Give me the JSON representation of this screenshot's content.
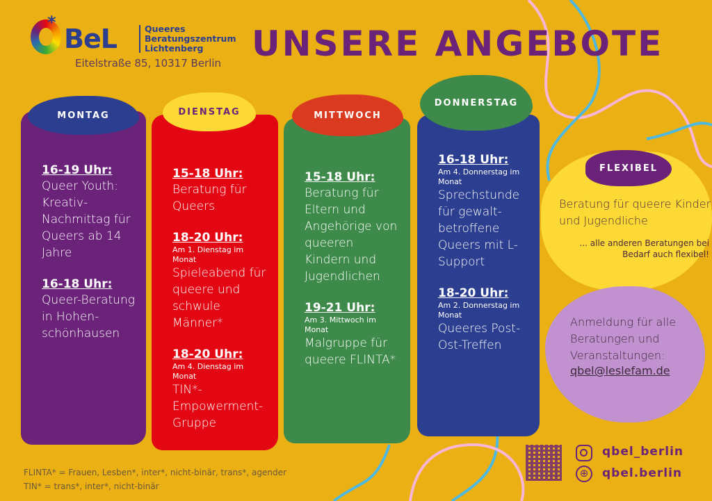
{
  "logo": {
    "brand": "BeL",
    "subtitle": [
      "Queeres",
      "Beratungszentrum",
      "Lichtenberg"
    ],
    "address": "Eitelstraße 85, 10317 Berlin"
  },
  "title": "UNSERE ANGEBOTE",
  "days": [
    {
      "name": "MONTAG",
      "color": "#6a2378",
      "header_color": "#2b3e8f",
      "entries": [
        {
          "time": "16-19 Uhr:",
          "note": "",
          "desc": "Queer Youth: Kreativ-Nachmittag für Queers ab 14 Jahre"
        },
        {
          "time": "16-18 Uhr:",
          "note": "",
          "desc": "Queer-Beratung in Hohen-schönhausen"
        }
      ]
    },
    {
      "name": "DIENSTAG",
      "color": "#e30613",
      "header_color": "#fdd935",
      "entries": [
        {
          "time": "15-18 Uhr:",
          "note": "",
          "desc": "Beratung für Queers"
        },
        {
          "time": "18-20 Uhr:",
          "note": "Am 1. Dienstag im Monat",
          "desc": "Spieleabend für queere und schwule Männer*"
        },
        {
          "time": "18-20 Uhr:",
          "note": "Am 4. Dienstag im Monat",
          "desc": "TIN*-Empowerment-Gruppe"
        }
      ]
    },
    {
      "name": "MITTWOCH",
      "color": "#3e8a4a",
      "header_color": "#d93a20",
      "entries": [
        {
          "time": "15-18 Uhr:",
          "note": "",
          "desc": "Beratung für Eltern und Angehörige von queeren Kindern und Jugendlichen"
        },
        {
          "time": "19-21 Uhr:",
          "note": "Am 3. Mittwoch im Monat",
          "desc": "Malgruppe für queere FLINTA*"
        }
      ]
    },
    {
      "name": "DONNERSTAG",
      "color": "#2b3e8f",
      "header_color": "#3e8a4a",
      "entries": [
        {
          "time": "16-18 Uhr:",
          "note": "Am 4. Donnerstag im Monat",
          "desc": "Sprechstunde für gewalt-betroffene Queers mit L-Support"
        },
        {
          "time": "18-20 Uhr:",
          "note": "Am 2. Donnerstag im Monat",
          "desc": "Queeres Post-Ost-Treffen"
        }
      ]
    }
  ],
  "flexibel": {
    "label": "FLEXIBEL",
    "main": "Beratung für queere Kinder und Jugendliche",
    "sub": "... alle anderen Beratungen bei Bedarf auch flexibel!"
  },
  "anmeldung": {
    "text": "Anmeldung für alle Beratungen und Veranstaltungen:",
    "email": "qbel@leslefam.de"
  },
  "footnotes": [
    "FLINTA* = Frauen, Lesben*, inter*, nicht-binär, trans*, agender",
    "TIN* = trans*, inter*, nicht-binär"
  ],
  "social": {
    "instagram": "qbel_berlin",
    "web": "qbel.berlin"
  }
}
